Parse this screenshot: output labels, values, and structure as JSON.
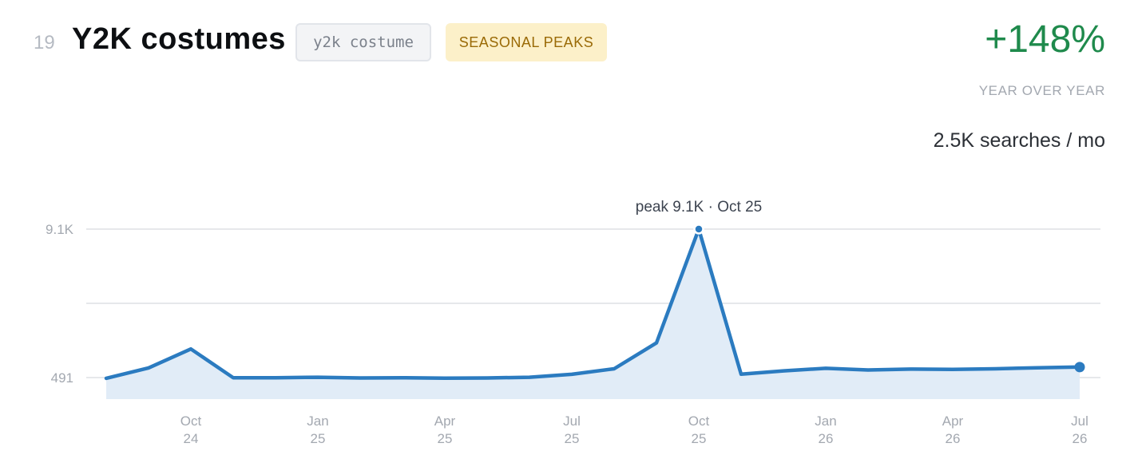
{
  "header": {
    "rank": "19",
    "title": "Y2K costumes",
    "keyword": "y2k costume",
    "tag": "SEASONAL PEAKS",
    "growth": "+148%",
    "growth_label": "YEAR OVER YEAR",
    "volume": "2.5K searches / mo"
  },
  "colors": {
    "line": "#2b7bc0",
    "area": "#e1ecf7",
    "growth": "#1f8a4c",
    "tag_bg": "#fcf0c9",
    "tag_text": "#9a6a06",
    "grid": "#e6e8eb"
  },
  "chart_data": {
    "type": "area",
    "y_ticks": [
      {
        "label": "9.1K",
        "value": 9100
      },
      {
        "label": "491",
        "value": 491
      }
    ],
    "x_ticks": [
      {
        "month": "Oct",
        "year": "24",
        "index": 2
      },
      {
        "month": "Jan",
        "year": "25",
        "index": 5
      },
      {
        "month": "Apr",
        "year": "25",
        "index": 8
      },
      {
        "month": "Jul",
        "year": "25",
        "index": 11
      },
      {
        "month": "Oct",
        "year": "25",
        "index": 14
      },
      {
        "month": "Jan",
        "year": "26",
        "index": 17
      },
      {
        "month": "Apr",
        "year": "26",
        "index": 20
      },
      {
        "month": "Jul",
        "year": "26",
        "index": 23
      }
    ],
    "x": [
      "Aug 24",
      "Sep 24",
      "Oct 24",
      "Nov 24",
      "Dec 24",
      "Jan 25",
      "Feb 25",
      "Mar 25",
      "Apr 25",
      "May 25",
      "Jun 25",
      "Jul 25",
      "Aug 25",
      "Sep 25",
      "Oct 25",
      "Nov 25",
      "Dec 25",
      "Jan 26",
      "Feb 26",
      "Mar 26",
      "Apr 26",
      "May 26",
      "Jun 26",
      "Jul 26"
    ],
    "values": [
      450,
      1050,
      2150,
      480,
      480,
      510,
      470,
      480,
      460,
      470,
      510,
      680,
      1000,
      2500,
      9100,
      690,
      880,
      1030,
      930,
      980,
      970,
      1000,
      1060,
      1100
    ],
    "ylim": [
      0,
      10500
    ],
    "grid": true,
    "peak_label": "peak 9.1K · Oct 25",
    "peak_index": 14
  }
}
